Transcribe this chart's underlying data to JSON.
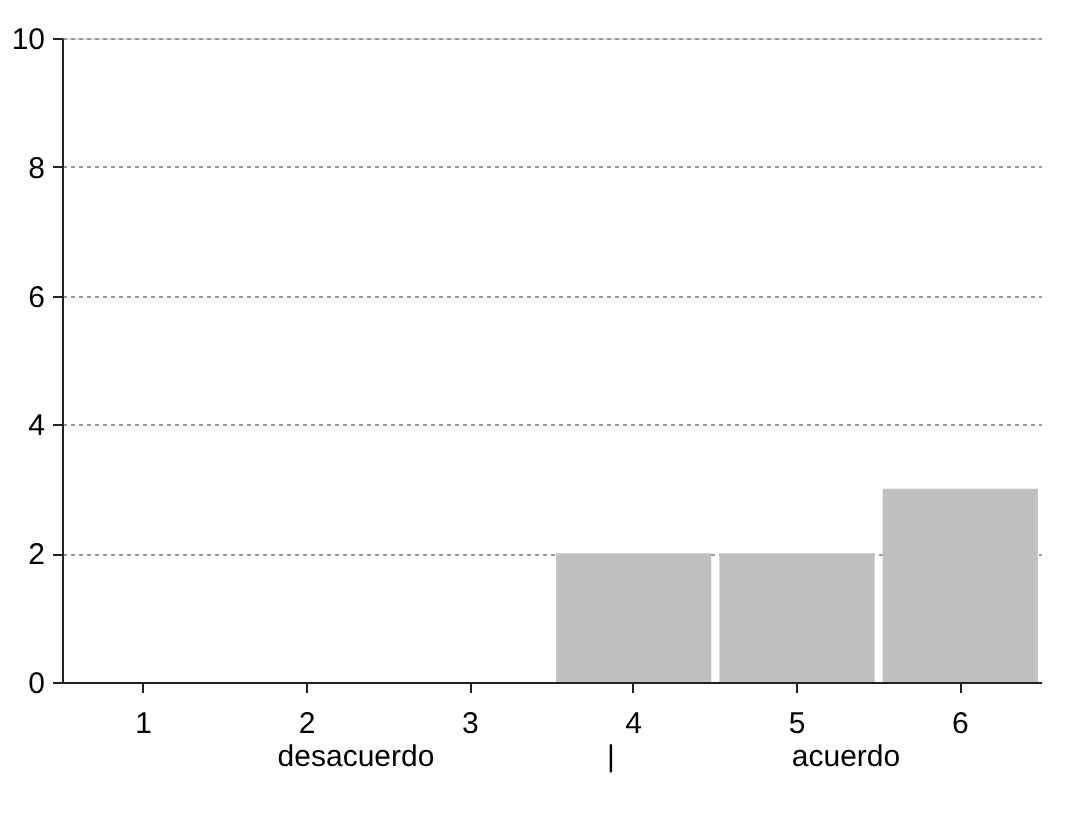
{
  "chart_data": {
    "type": "bar",
    "categories": [
      "1",
      "2",
      "3",
      "4",
      "5",
      "6"
    ],
    "values": [
      0,
      0,
      0,
      2,
      2,
      3
    ],
    "color": "#c0c0c0",
    "ylim": [
      0,
      10
    ],
    "yticks": [
      0,
      2,
      4,
      6,
      8,
      10
    ],
    "grid": "y",
    "annotations": [
      "desacuerdo",
      "|",
      "acuerdo"
    ]
  }
}
